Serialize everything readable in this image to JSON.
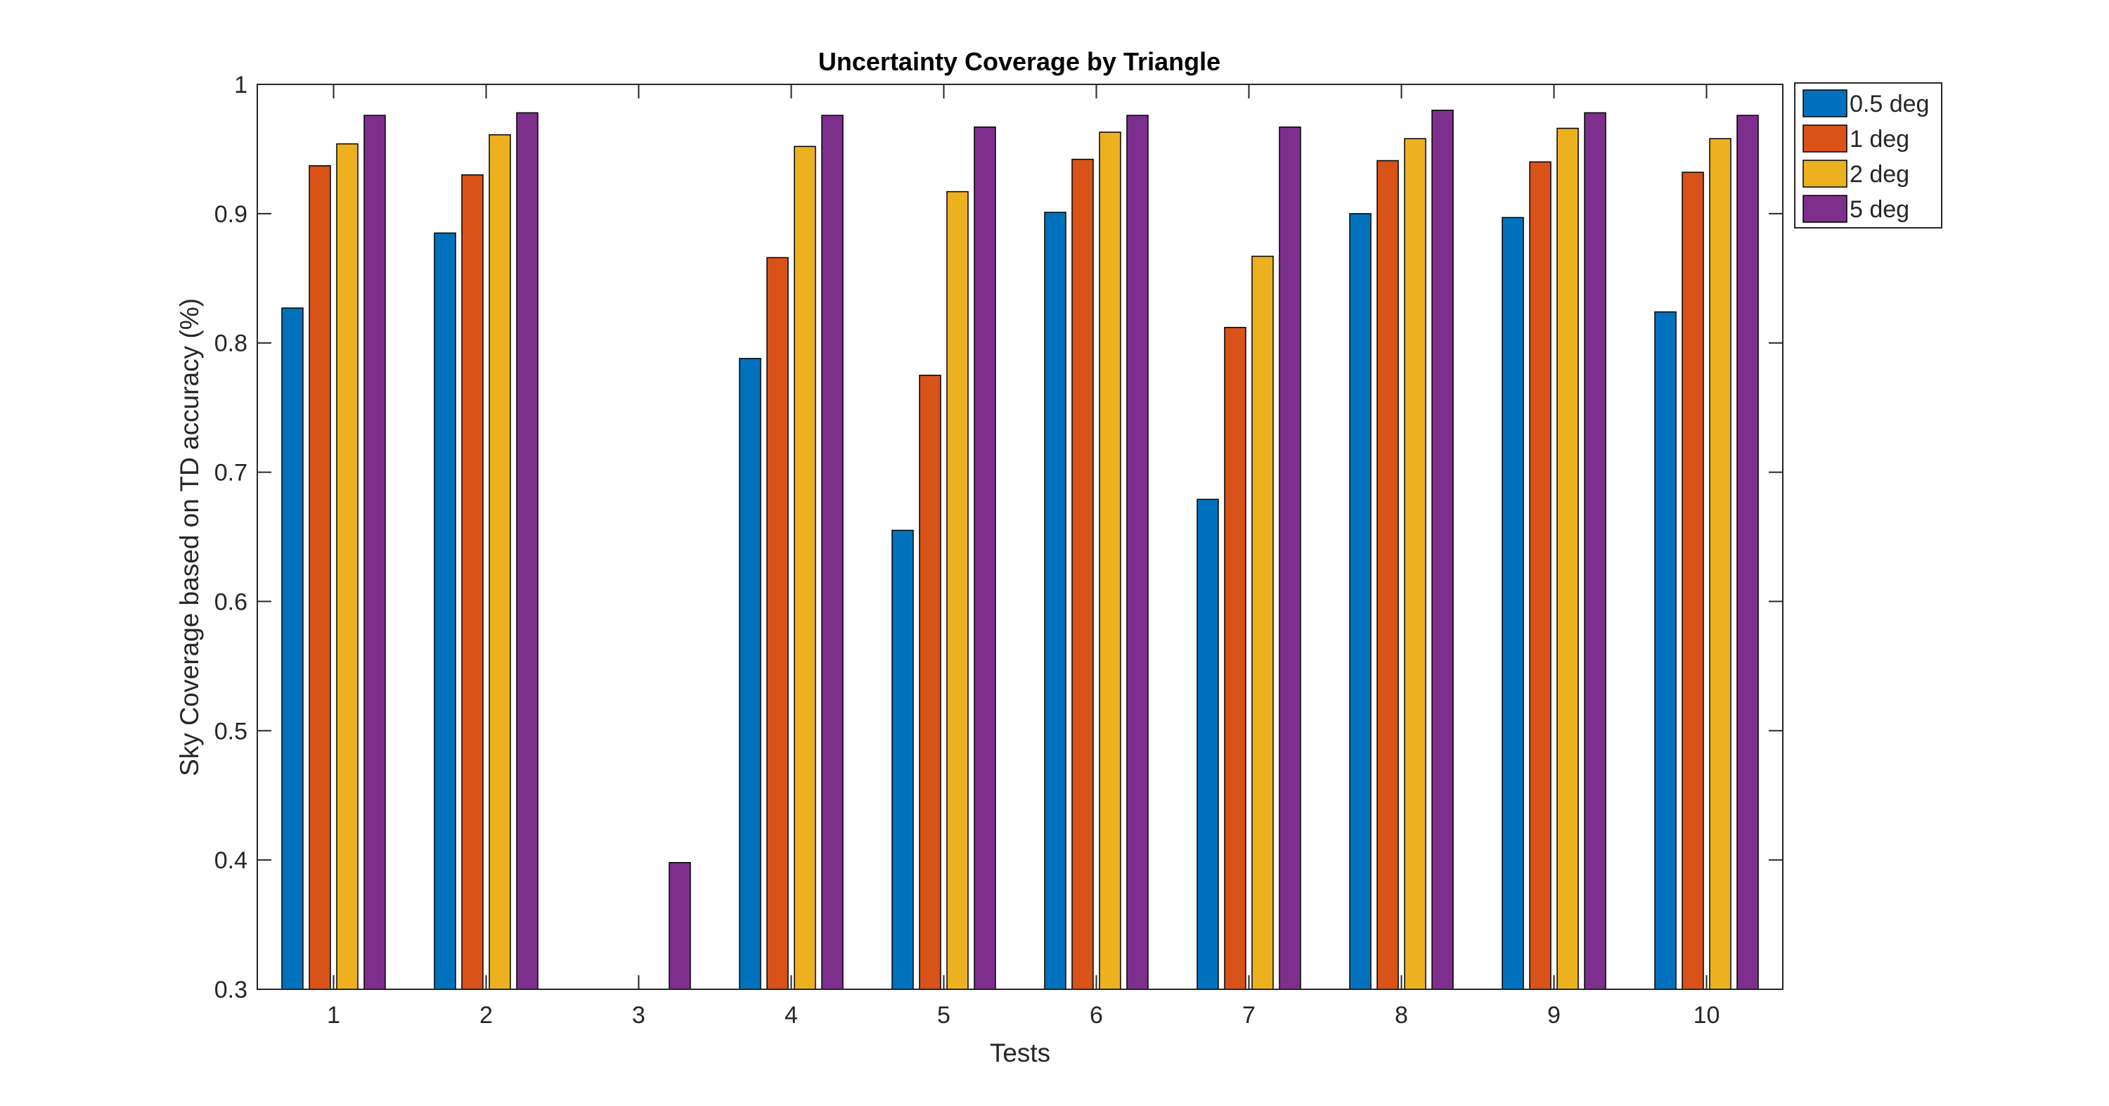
{
  "chart_data": {
    "type": "bar",
    "title": "Uncertainty Coverage by Triangle",
    "xlabel": "Tests",
    "ylabel": "Sky Coverage based on TD accuracy (%)",
    "categories": [
      "1",
      "2",
      "3",
      "4",
      "5",
      "6",
      "7",
      "8",
      "9",
      "10"
    ],
    "ylim": [
      0.3,
      1
    ],
    "yticks": [
      "0.3",
      "0.4",
      "0.5",
      "0.6",
      "0.7",
      "0.8",
      "0.9",
      "1"
    ],
    "grid": false,
    "legend_position": "outside-top-right",
    "series": [
      {
        "name": "0.5 deg",
        "color": "#0072BD",
        "values": [
          0.827,
          0.885,
          0.3,
          0.788,
          0.655,
          0.901,
          0.679,
          0.9,
          0.897,
          0.824
        ]
      },
      {
        "name": "1 deg",
        "color": "#D95319",
        "values": [
          0.937,
          0.93,
          0.3,
          0.866,
          0.775,
          0.942,
          0.812,
          0.941,
          0.94,
          0.932
        ]
      },
      {
        "name": "2 deg",
        "color": "#EDB120",
        "values": [
          0.954,
          0.961,
          0.3,
          0.952,
          0.917,
          0.963,
          0.867,
          0.958,
          0.966,
          0.958
        ]
      },
      {
        "name": "5 deg",
        "color": "#7E2F8E",
        "values": [
          0.976,
          0.978,
          0.398,
          0.976,
          0.967,
          0.976,
          0.967,
          0.98,
          0.978,
          0.976
        ]
      }
    ]
  }
}
